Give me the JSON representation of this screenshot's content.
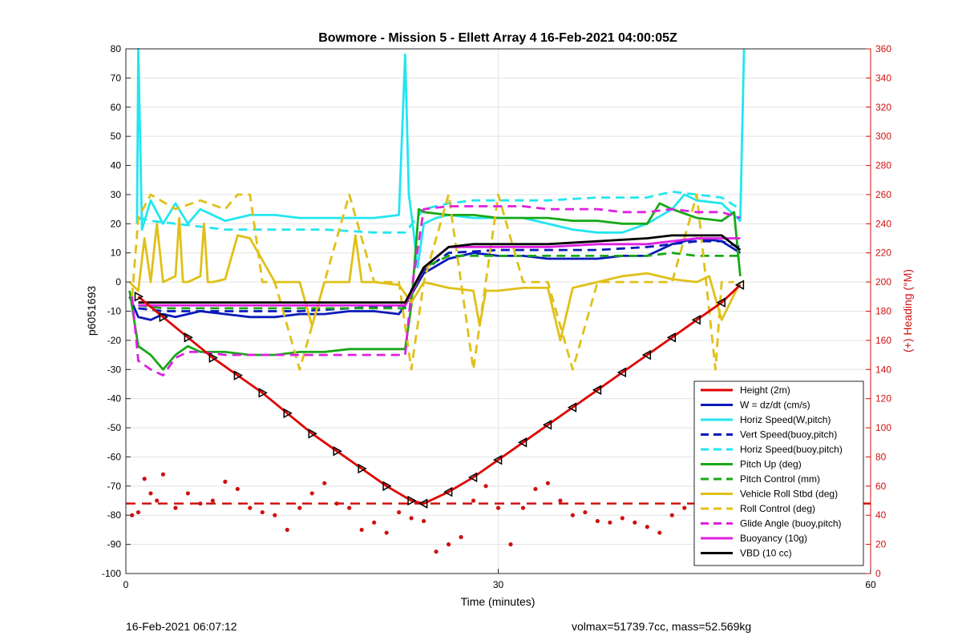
{
  "footer": {
    "timestamp": "16-Feb-2021 06:07:12",
    "stats": "volmax=51739.7cc, mass=52.569kg"
  },
  "chart_data": {
    "type": "line",
    "title": "Bowmore - Mission 5 - Ellett Array 4 16-Feb-2021 04:00:05Z",
    "xlabel": "Time (minutes)",
    "ylabel": "p6051693",
    "ylabel_right": "(+) Heading (°M)",
    "xlim": [
      0,
      60
    ],
    "ylim": [
      -100,
      80
    ],
    "ylim_right": [
      0,
      360
    ],
    "x_ticks": [
      0,
      30,
      60
    ],
    "y_ticks": [
      80,
      70,
      60,
      50,
      40,
      30,
      20,
      10,
      0,
      -10,
      -20,
      -30,
      -40,
      -50,
      -60,
      -70,
      -80,
      -90,
      -100
    ],
    "y_ticks_right": [
      360,
      340,
      320,
      300,
      280,
      260,
      240,
      220,
      200,
      180,
      160,
      140,
      120,
      100,
      80,
      60,
      40,
      20,
      0
    ],
    "grid": true,
    "legend_position": "bottom-right",
    "colors": {
      "right_axis": "#d01010"
    },
    "series": [
      {
        "name": "Height (2m)",
        "color": "#e00000",
        "style": "solid",
        "x": [
          1,
          3,
          5,
          7,
          9,
          11,
          13,
          15,
          17,
          19,
          21,
          23,
          24,
          26,
          28,
          30,
          32,
          34,
          36,
          38,
          40,
          42,
          44,
          46,
          48,
          49.5
        ],
        "y": [
          -5,
          -12,
          -19,
          -26,
          -32,
          -38,
          -45,
          -52,
          -58,
          -64,
          -70,
          -75,
          -76,
          -72,
          -67,
          -61,
          -55,
          -49,
          -43,
          -37,
          -31,
          -25,
          -19,
          -13,
          -7,
          -1
        ]
      },
      {
        "name": "W = dz/dt (cm/s)",
        "color": "#0a1ab8",
        "style": "solid",
        "x": [
          0.3,
          1,
          2,
          3,
          4,
          6,
          8,
          10,
          12,
          14,
          16,
          18,
          20,
          22,
          22.5,
          24,
          26,
          28,
          30,
          32,
          34,
          36,
          38,
          40,
          42,
          43,
          44,
          46,
          48,
          49.5
        ],
        "y": [
          -5,
          -12,
          -13,
          -11,
          -12,
          -10,
          -11,
          -12,
          -12,
          -11,
          -11,
          -10,
          -10,
          -11,
          -8,
          3,
          8,
          10,
          9,
          9,
          8,
          8,
          8,
          9,
          9,
          11,
          13,
          15,
          14,
          10
        ]
      },
      {
        "name": "Horiz Speed(W,pitch)",
        "color": "#22e6f0",
        "style": "solid",
        "x": [
          0.9,
          1,
          1.3,
          2,
          3,
          4,
          5,
          6,
          8,
          10,
          12,
          14,
          16,
          18,
          20,
          22,
          22.5,
          22.8,
          23.1,
          23.5,
          24,
          25,
          26,
          28,
          30,
          32,
          34,
          36,
          38,
          40,
          42,
          44,
          45,
          46,
          48,
          49.5,
          49.8
        ],
        "y": [
          20,
          80,
          18,
          28,
          20,
          27,
          20,
          25,
          21,
          23,
          23,
          22,
          22,
          22,
          22,
          23,
          78,
          30,
          20,
          5,
          20,
          22,
          23,
          22,
          22,
          22,
          20,
          18,
          17,
          17,
          20,
          25,
          30,
          28,
          27,
          21,
          80
        ]
      },
      {
        "name": "Vert Speed(buoy,pitch)",
        "color": "#0a1ab8",
        "style": "dash",
        "x": [
          1,
          3,
          6,
          10,
          14,
          18,
          22.5,
          24,
          26,
          30,
          34,
          38,
          42,
          44,
          46,
          48,
          49.5
        ],
        "y": [
          -9,
          -10,
          -10,
          -10,
          -10,
          -9,
          -8,
          4,
          10,
          11,
          11,
          11,
          12,
          13,
          14,
          14,
          12
        ]
      },
      {
        "name": "Horiz Speed(buoy,pitch)",
        "color": "#22e6f0",
        "style": "dash",
        "x": [
          1,
          2,
          4,
          8,
          12,
          16,
          20,
          22.5,
          24,
          26,
          28,
          30,
          34,
          38,
          42,
          44,
          46,
          48,
          49.5
        ],
        "y": [
          22,
          21,
          20,
          18,
          18,
          18,
          17,
          17,
          25,
          27,
          28,
          28,
          28,
          29,
          29,
          31,
          30,
          29,
          25
        ]
      },
      {
        "name": "Pitch Up (deg)",
        "color": "#18a818",
        "style": "solid",
        "x": [
          0.3,
          1,
          2,
          3,
          4,
          5,
          6,
          8,
          10,
          12,
          14,
          16,
          18,
          20,
          22.5,
          23,
          23.6,
          24,
          26,
          28,
          30,
          32,
          34,
          36,
          38,
          40,
          42,
          43,
          44,
          46,
          48,
          49,
          49.5
        ],
        "y": [
          -3,
          -22,
          -25,
          -30,
          -25,
          -22,
          -24,
          -24,
          -25,
          -25,
          -24,
          -24,
          -23,
          -23,
          -23,
          -8,
          25,
          24,
          23,
          23,
          22,
          22,
          22,
          21,
          21,
          20,
          20,
          27,
          25,
          22,
          21,
          24,
          2
        ]
      },
      {
        "name": "Pitch Control (mm)",
        "color": "#18a818",
        "style": "dash",
        "x": [
          1,
          3,
          6,
          10,
          14,
          18,
          22.5,
          24,
          26,
          30,
          34,
          38,
          42,
          44,
          46,
          48,
          49.5
        ],
        "y": [
          -8,
          -9,
          -9,
          -9,
          -9,
          -9,
          -9,
          5,
          9,
          9,
          9,
          9,
          9,
          10,
          9,
          9,
          9
        ]
      },
      {
        "name": "Vehicle Roll Stbd (deg)",
        "color": "#e0c018",
        "style": "solid",
        "x": [
          0.3,
          1,
          1.5,
          2,
          2.5,
          3,
          4,
          4.3,
          4.6,
          5,
          6,
          6.3,
          6.6,
          7,
          8,
          9,
          10,
          12,
          14,
          15,
          16,
          18,
          18.5,
          19,
          20,
          22,
          23,
          24,
          26,
          28,
          28.5,
          29,
          30,
          32,
          34,
          35,
          36,
          38,
          40,
          42,
          44,
          46,
          47,
          48,
          49.5
        ],
        "y": [
          0,
          -3,
          15,
          0,
          20,
          0,
          2,
          22,
          0,
          0,
          2,
          20,
          0,
          0,
          1,
          16,
          15,
          0,
          0,
          -15,
          0,
          0,
          16,
          0,
          0,
          -1,
          -7,
          0,
          -2,
          -3,
          -15,
          -3,
          -3,
          -2,
          -2,
          -20,
          -2,
          0,
          2,
          3,
          1,
          0,
          2,
          -13,
          0
        ]
      },
      {
        "name": "Roll Control (deg)",
        "color": "#e0c018",
        "style": "dash",
        "x": [
          0.5,
          1,
          2,
          4,
          6,
          8,
          9,
          10,
          11,
          12,
          14,
          16,
          18,
          20,
          22,
          23,
          24,
          26,
          28,
          30,
          32,
          34,
          36,
          38,
          40,
          42,
          44,
          46,
          47.5,
          48,
          49
        ],
        "y": [
          -5,
          22,
          30,
          25,
          28,
          25,
          30,
          30,
          0,
          0,
          -30,
          0,
          30,
          0,
          0,
          -30,
          0,
          30,
          -30,
          30,
          0,
          0,
          -30,
          0,
          0,
          0,
          0,
          30,
          -30,
          0,
          0
        ]
      },
      {
        "name": "Glide Angle (buoy,pitch)",
        "color": "#e020e0",
        "style": "dash",
        "x": [
          0.5,
          1,
          2,
          3,
          4,
          5,
          6,
          8,
          10,
          12,
          14,
          16,
          18,
          20,
          22.5,
          23,
          24,
          26,
          28,
          30,
          32,
          34,
          36,
          38,
          40,
          42,
          44,
          46,
          48,
          49.5
        ],
        "y": [
          -5,
          -27,
          -30,
          -32,
          -26,
          -24,
          -24,
          -25,
          -25,
          -25,
          -25,
          -25,
          -25,
          -25,
          -25,
          -3,
          25,
          26,
          26,
          26,
          26,
          25,
          25,
          25,
          24,
          24,
          25,
          24,
          24,
          22
        ]
      },
      {
        "name": "Buoyancy (10g)",
        "color": "#e020e0",
        "style": "solid",
        "x": [
          1,
          3,
          6,
          10,
          14,
          18,
          22.5,
          24,
          26,
          30,
          34,
          38,
          42,
          44,
          46,
          48,
          49.5
        ],
        "y": [
          -8,
          -8,
          -8,
          -8,
          -8,
          -8,
          -8,
          5,
          12,
          12,
          12,
          13,
          13,
          14,
          15,
          15,
          15
        ]
      },
      {
        "name": "VBD (10 cc)",
        "color": "#000000",
        "style": "solid",
        "x": [
          1,
          3,
          6,
          10,
          14,
          18,
          22.5,
          24,
          26,
          28,
          30,
          34,
          38,
          42,
          44,
          46,
          48,
          49.5
        ],
        "y": [
          -7,
          -7,
          -7,
          -7,
          -7,
          -7,
          -7,
          5,
          12,
          13,
          13,
          13,
          14,
          15,
          16,
          16,
          16,
          11
        ]
      }
    ],
    "heading_series": {
      "axis": "right",
      "color": "#d01010",
      "style": "markers",
      "x": [
        0.5,
        1,
        1.5,
        2,
        2.5,
        3,
        4,
        5,
        6,
        7,
        8,
        9,
        10,
        11,
        12,
        13,
        14,
        15,
        16,
        17,
        18,
        19,
        20,
        21,
        22,
        23,
        24,
        25,
        26,
        27,
        28,
        29,
        30,
        31,
        32,
        33,
        34,
        35,
        36,
        37,
        38,
        39,
        40,
        41,
        42,
        43,
        44,
        45,
        46,
        47,
        48
      ],
      "y": [
        40,
        42,
        65,
        55,
        50,
        68,
        45,
        55,
        48,
        50,
        63,
        58,
        45,
        42,
        40,
        30,
        45,
        55,
        62,
        48,
        45,
        30,
        35,
        28,
        42,
        38,
        36,
        15,
        20,
        25,
        50,
        60,
        45,
        20,
        45,
        58,
        62,
        50,
        40,
        42,
        36,
        35,
        38,
        35,
        32,
        28,
        40,
        45,
        40,
        35,
        42
      ]
    },
    "heading_reference": {
      "y": 48,
      "color": "#d01010",
      "style": "dash"
    }
  }
}
